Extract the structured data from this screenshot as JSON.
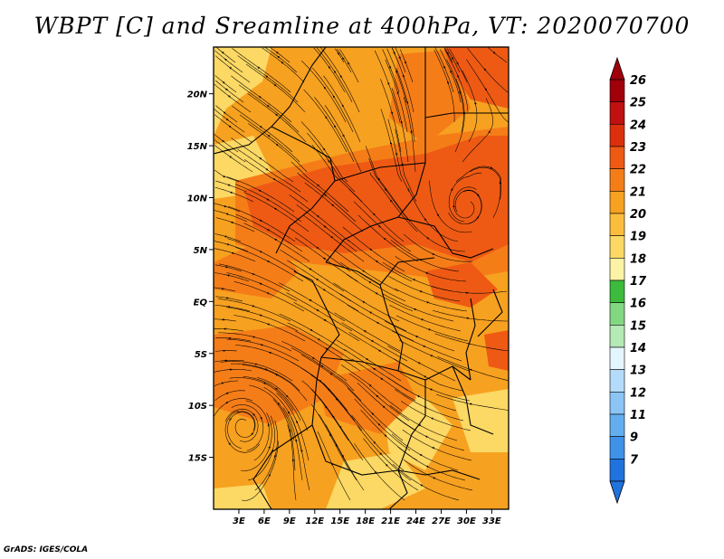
{
  "title": "WBPT [C] and Sreamline at 400hPa, VT: 2020070700",
  "credit": "GrADS: IGES/COLA",
  "map": {
    "lon_range": [
      0,
      35
    ],
    "lat_range": [
      -20,
      24.5
    ],
    "lat_ticks": [
      {
        "lat": 20,
        "label": "20N"
      },
      {
        "lat": 15,
        "label": "15N"
      },
      {
        "lat": 10,
        "label": "10N"
      },
      {
        "lat": 5,
        "label": "5N"
      },
      {
        "lat": 0,
        "label": "EQ"
      },
      {
        "lat": -5,
        "label": "5S"
      },
      {
        "lat": -10,
        "label": "10S"
      },
      {
        "lat": -15,
        "label": "15S"
      }
    ],
    "lon_ticks": [
      {
        "lon": 3,
        "label": "3E"
      },
      {
        "lon": 6,
        "label": "6E"
      },
      {
        "lon": 9,
        "label": "9E"
      },
      {
        "lon": 12,
        "label": "12E"
      },
      {
        "lon": 15,
        "label": "15E"
      },
      {
        "lon": 18,
        "label": "18E"
      },
      {
        "lon": 21,
        "label": "21E"
      },
      {
        "lon": 24,
        "label": "24E"
      },
      {
        "lon": 27,
        "label": "27E"
      },
      {
        "lon": 30,
        "label": "30E"
      },
      {
        "lon": 33,
        "label": "33E"
      }
    ]
  },
  "legend": {
    "levels": [
      {
        "label": "26",
        "color": "#a0000a"
      },
      {
        "label": "25",
        "color": "#c01010"
      },
      {
        "label": "24",
        "color": "#dc2f0e"
      },
      {
        "label": "23",
        "color": "#ee5a14"
      },
      {
        "label": "22",
        "color": "#f57d18"
      },
      {
        "label": "21",
        "color": "#f7a120"
      },
      {
        "label": "20",
        "color": "#fbbd3c"
      },
      {
        "label": "19",
        "color": "#fcd864"
      },
      {
        "label": "18",
        "color": "#fcf3a6"
      },
      {
        "label": "17",
        "color": "#3cbb3c"
      },
      {
        "label": "16",
        "color": "#82d882"
      },
      {
        "label": "15",
        "color": "#b5e9b5"
      },
      {
        "label": "14",
        "color": "#e4f6fd"
      },
      {
        "label": "13",
        "color": "#b4dcfa"
      },
      {
        "label": "12",
        "color": "#8cc5f5"
      },
      {
        "label": "11",
        "color": "#64aeef"
      },
      {
        "label": "9",
        "color": "#3f92e8"
      },
      {
        "label": "7",
        "color": "#2072dc"
      }
    ]
  },
  "colors": {
    "low": "#f7a120",
    "mid": "#f57d18",
    "high": "#ee5a14",
    "light": "#fcd864"
  }
}
